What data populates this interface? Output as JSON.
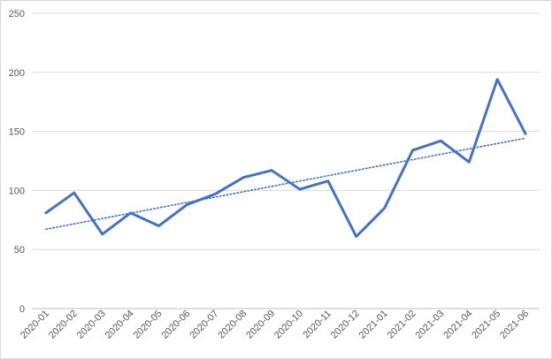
{
  "chart_data": {
    "type": "line",
    "title": "",
    "xlabel": "",
    "ylabel": "",
    "categories": [
      "2020-01",
      "2020-02",
      "2020-03",
      "2020-04",
      "2020-05",
      "2020-06",
      "2020-07",
      "2020-08",
      "2020-09",
      "2020-10",
      "2020-11",
      "2020-12",
      "2021-01",
      "2021-02",
      "2021-03",
      "2021-04",
      "2021-05",
      "2021-06"
    ],
    "series": [
      {
        "values": [
          81,
          98,
          63,
          81,
          70,
          88,
          97,
          111,
          117,
          101,
          108,
          61,
          85,
          134,
          142,
          124,
          194,
          148
        ],
        "color": "#4472c4"
      }
    ],
    "trendline": {
      "type": "linear",
      "style": "dotted",
      "color": "#4472c4"
    },
    "ylim": [
      0,
      250
    ],
    "yticks": [
      0,
      50,
      100,
      150,
      200,
      250
    ],
    "grid": {
      "horizontal": true,
      "vertical": false
    },
    "legend": "none"
  }
}
